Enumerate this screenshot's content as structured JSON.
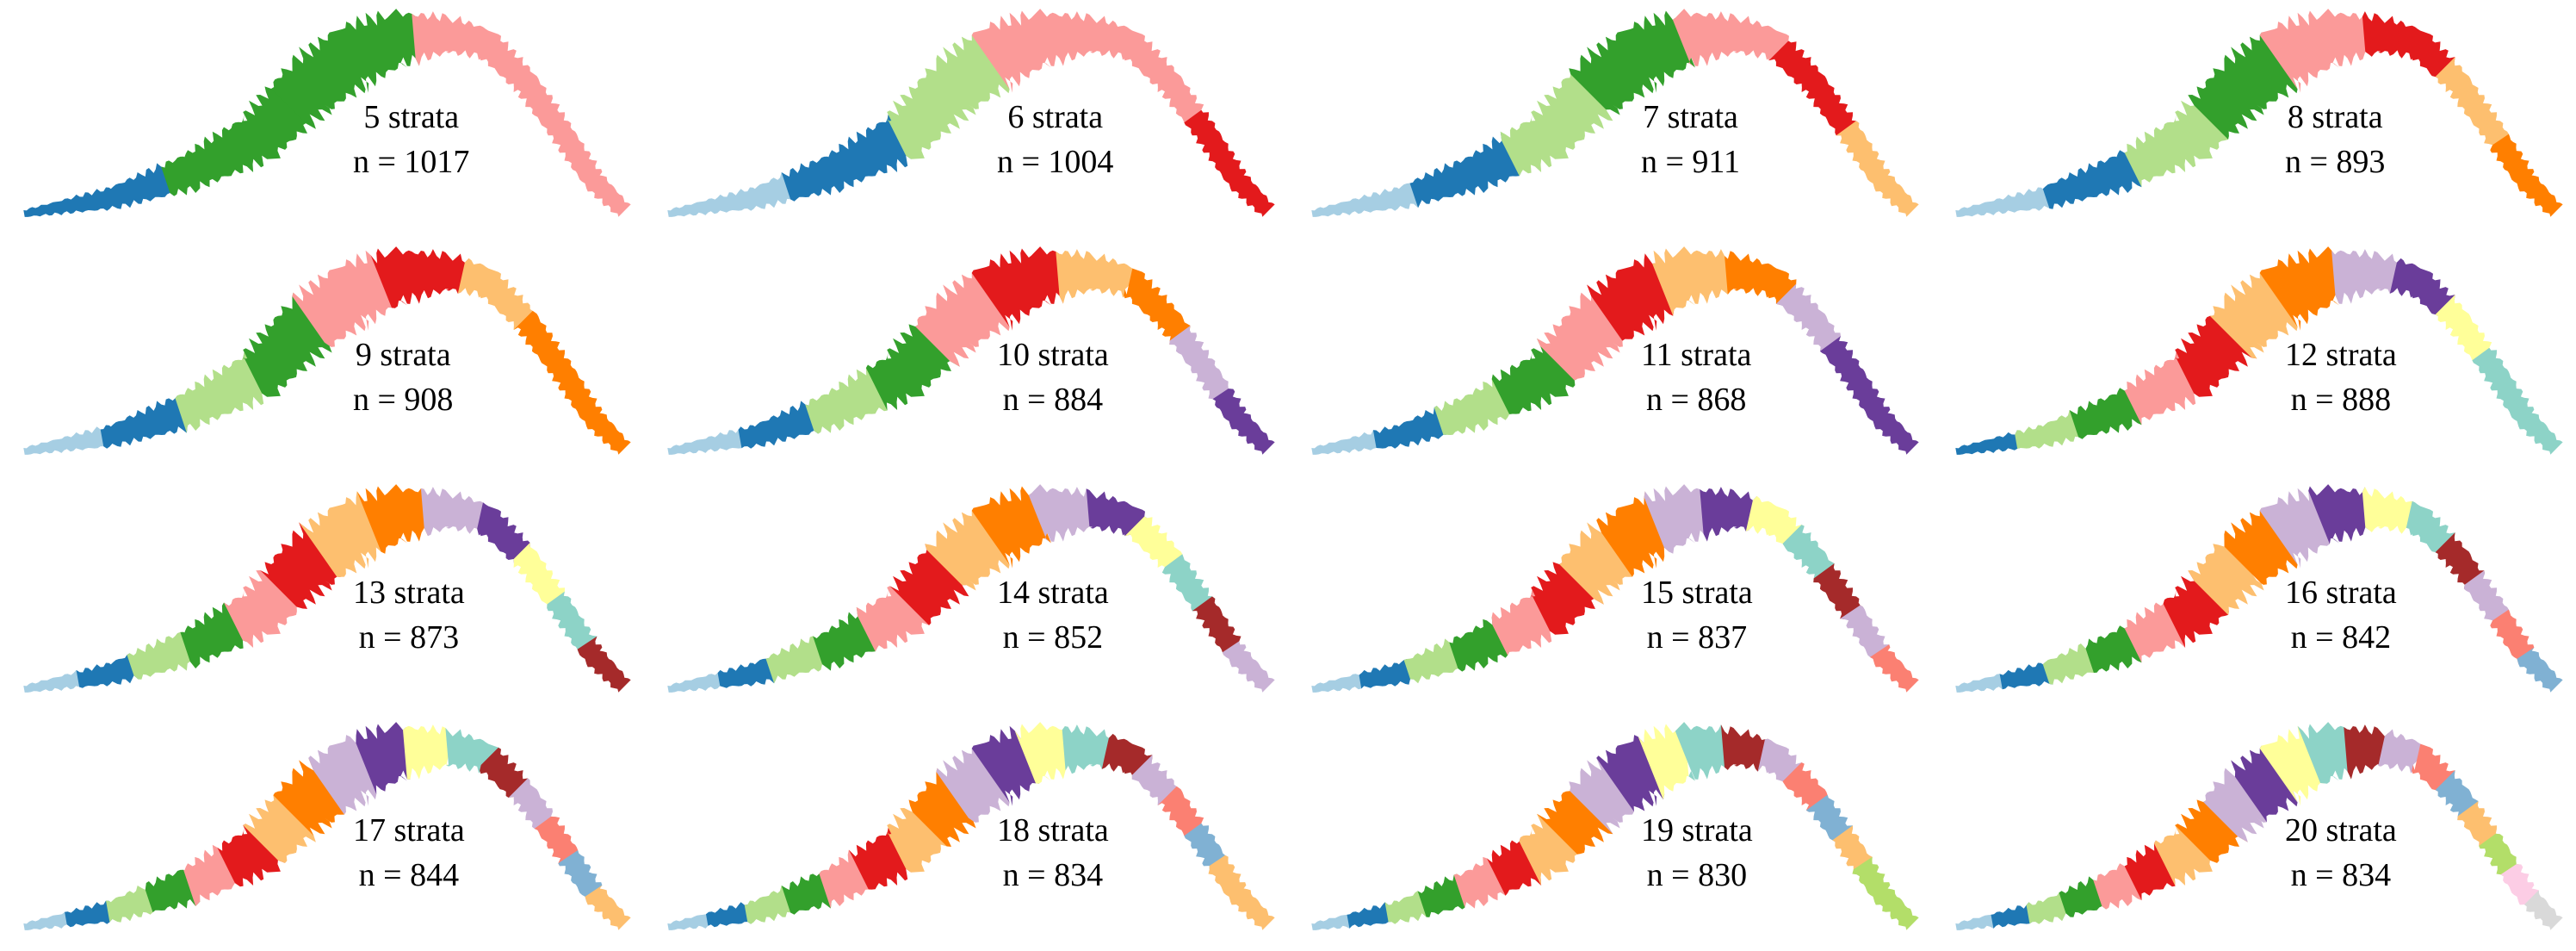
{
  "palette": [
    "#1f78b4",
    "#a6cee3",
    "#33a02c",
    "#b2df8a",
    "#fb9a99",
    "#e31a1c",
    "#fdbf6f",
    "#ff7f00",
    "#cab2d6",
    "#6a3d9a",
    "#ffff99",
    "#8dd3c7",
    "#a52a2a",
    "#fb8072",
    "#80b1d3",
    "#b3de69",
    "#fccde5",
    "#d9d9d9"
  ],
  "panels": [
    {
      "strata_label": "5 strata",
      "n_label": "n = 1017",
      "colors": [
        "#1f78b4",
        "#33a02c",
        "#33a02c",
        "#fb9a99",
        "#fb9a99"
      ]
    },
    {
      "strata_label": "6 strata",
      "n_label": "n = 1004",
      "colors": [
        "#a6cee3",
        "#1f78b4",
        "#b2df8a",
        "#fb9a99",
        "#fb9a99",
        "#e31a1c"
      ]
    },
    {
      "strata_label": "7 strata",
      "n_label": "n = 911",
      "colors": [
        "#a6cee3",
        "#1f78b4",
        "#b2df8a",
        "#33a02c",
        "#fb9a99",
        "#e31a1c",
        "#fdbf6f"
      ]
    },
    {
      "strata_label": "8 strata",
      "n_label": "n = 893",
      "colors": [
        "#a6cee3",
        "#1f78b4",
        "#b2df8a",
        "#33a02c",
        "#fb9a99",
        "#e31a1c",
        "#fdbf6f",
        "#ff7f00"
      ]
    },
    {
      "strata_label": "9 strata",
      "n_label": "n = 908",
      "colors": [
        "#a6cee3",
        "#1f78b4",
        "#b2df8a",
        "#33a02c",
        "#fb9a99",
        "#e31a1c",
        "#fdbf6f",
        "#ff7f00",
        "#ff7f00"
      ]
    },
    {
      "strata_label": "10 strata",
      "n_label": "n = 884",
      "colors": [
        "#a6cee3",
        "#1f78b4",
        "#b2df8a",
        "#33a02c",
        "#fb9a99",
        "#e31a1c",
        "#fdbf6f",
        "#ff7f00",
        "#cab2d6",
        "#6a3d9a"
      ]
    },
    {
      "strata_label": "11 strata",
      "n_label": "n = 868",
      "colors": [
        "#a6cee3",
        "#1f78b4",
        "#b2df8a",
        "#33a02c",
        "#fb9a99",
        "#e31a1c",
        "#fdbf6f",
        "#ff7f00",
        "#cab2d6",
        "#6a3d9a",
        "#6a3d9a"
      ]
    },
    {
      "strata_label": "12 strata",
      "n_label": "n = 888",
      "colors": [
        "#1f78b4",
        "#b2df8a",
        "#33a02c",
        "#fb9a99",
        "#e31a1c",
        "#fdbf6f",
        "#ff7f00",
        "#cab2d6",
        "#6a3d9a",
        "#ffff99",
        "#8dd3c7",
        "#8dd3c7"
      ]
    },
    {
      "strata_label": "13 strata",
      "n_label": "n = 873",
      "colors": [
        "#a6cee3",
        "#1f78b4",
        "#b2df8a",
        "#33a02c",
        "#fb9a99",
        "#e31a1c",
        "#fdbf6f",
        "#ff7f00",
        "#cab2d6",
        "#6a3d9a",
        "#ffff99",
        "#8dd3c7",
        "#a52a2a"
      ]
    },
    {
      "strata_label": "14 strata",
      "n_label": "n = 852",
      "colors": [
        "#a6cee3",
        "#1f78b4",
        "#b2df8a",
        "#33a02c",
        "#fb9a99",
        "#e31a1c",
        "#fdbf6f",
        "#ff7f00",
        "#cab2d6",
        "#6a3d9a",
        "#ffff99",
        "#8dd3c7",
        "#a52a2a",
        "#cab2d6"
      ]
    },
    {
      "strata_label": "15 strata",
      "n_label": "n = 837",
      "colors": [
        "#a6cee3",
        "#1f78b4",
        "#b2df8a",
        "#33a02c",
        "#fb9a99",
        "#e31a1c",
        "#fdbf6f",
        "#ff7f00",
        "#cab2d6",
        "#6a3d9a",
        "#ffff99",
        "#8dd3c7",
        "#a52a2a",
        "#cab2d6",
        "#fb8072"
      ]
    },
    {
      "strata_label": "16 strata",
      "n_label": "n = 842",
      "colors": [
        "#a6cee3",
        "#1f78b4",
        "#b2df8a",
        "#33a02c",
        "#fb9a99",
        "#e31a1c",
        "#fdbf6f",
        "#ff7f00",
        "#cab2d6",
        "#6a3d9a",
        "#ffff99",
        "#8dd3c7",
        "#a52a2a",
        "#cab2d6",
        "#fb8072",
        "#80b1d3"
      ]
    },
    {
      "strata_label": "17 strata",
      "n_label": "n = 844",
      "colors": [
        "#a6cee3",
        "#1f78b4",
        "#b2df8a",
        "#33a02c",
        "#fb9a99",
        "#e31a1c",
        "#fdbf6f",
        "#ff7f00",
        "#cab2d6",
        "#6a3d9a",
        "#ffff99",
        "#8dd3c7",
        "#a52a2a",
        "#cab2d6",
        "#fb8072",
        "#80b1d3",
        "#fdbf6f"
      ]
    },
    {
      "strata_label": "18 strata",
      "n_label": "n = 834",
      "colors": [
        "#a6cee3",
        "#1f78b4",
        "#b2df8a",
        "#33a02c",
        "#fb9a99",
        "#e31a1c",
        "#fdbf6f",
        "#ff7f00",
        "#cab2d6",
        "#6a3d9a",
        "#ffff99",
        "#8dd3c7",
        "#a52a2a",
        "#cab2d6",
        "#fb8072",
        "#80b1d3",
        "#fdbf6f",
        "#fdbf6f"
      ]
    },
    {
      "strata_label": "19 strata",
      "n_label": "n = 830",
      "colors": [
        "#a6cee3",
        "#1f78b4",
        "#b2df8a",
        "#33a02c",
        "#fb9a99",
        "#e31a1c",
        "#fdbf6f",
        "#ff7f00",
        "#cab2d6",
        "#6a3d9a",
        "#ffff99",
        "#8dd3c7",
        "#a52a2a",
        "#cab2d6",
        "#fb8072",
        "#80b1d3",
        "#fdbf6f",
        "#b3de69",
        "#b3de69"
      ]
    },
    {
      "strata_label": "20 strata",
      "n_label": "n = 834",
      "colors": [
        "#a6cee3",
        "#1f78b4",
        "#b2df8a",
        "#33a02c",
        "#fb9a99",
        "#e31a1c",
        "#fdbf6f",
        "#ff7f00",
        "#cab2d6",
        "#6a3d9a",
        "#ffff99",
        "#8dd3c7",
        "#a52a2a",
        "#cab2d6",
        "#fb8072",
        "#80b1d3",
        "#fdbf6f",
        "#b3de69",
        "#fccde5",
        "#d9d9d9"
      ]
    }
  ]
}
